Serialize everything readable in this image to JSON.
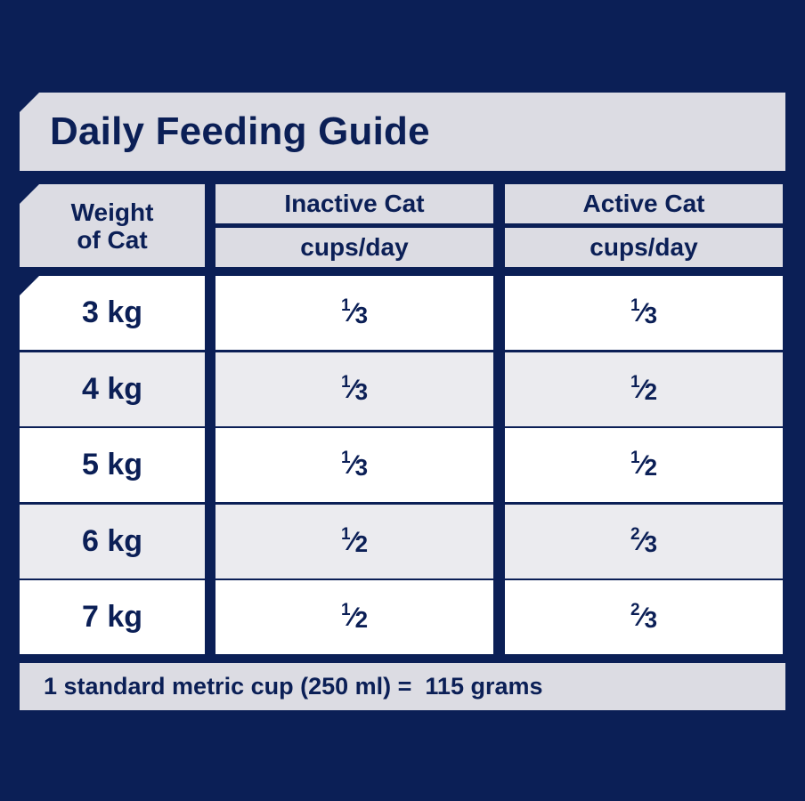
{
  "title": "Daily Feeding Guide",
  "headers": {
    "weight_line1": "Weight",
    "weight_line2": "of Cat",
    "inactive": "Inactive Cat",
    "active": "Active Cat",
    "unit": "cups/day"
  },
  "rows": [
    {
      "weight": "3 kg",
      "inactive": "1/3",
      "active": "1/3"
    },
    {
      "weight": "4 kg",
      "inactive": "1/3",
      "active": "1/2"
    },
    {
      "weight": "5 kg",
      "inactive": "1/3",
      "active": "1/2"
    },
    {
      "weight": "6 kg",
      "inactive": "1/2",
      "active": "2/3"
    },
    {
      "weight": "7 kg",
      "inactive": "1/2",
      "active": "2/3"
    }
  ],
  "footer": "1 standard metric cup (250 ml) =  115 grams",
  "colors": {
    "background": "#0b1f56",
    "header_fill": "#dcdce3",
    "row_white": "#ffffff",
    "row_grey": "#ebebef"
  }
}
